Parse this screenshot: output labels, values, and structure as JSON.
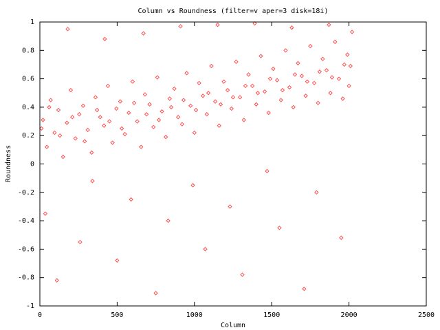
{
  "chart_data": {
    "type": "scatter",
    "title": "Column vs Roundness (filter=v aper=3 disk=18i)",
    "x_label": "Column",
    "y_label": "Roundness",
    "color": "#ff5050",
    "xlim": [
      0,
      2500
    ],
    "xticks": [
      0,
      500,
      1000,
      1500,
      2000,
      2500
    ],
    "ylim": [
      -1,
      1
    ],
    "yticks": [
      -1,
      -0.8,
      -0.6,
      -0.4,
      -0.2,
      0,
      0.2,
      0.4,
      0.6,
      0.8,
      1
    ],
    "x": [
      20,
      45,
      70,
      95,
      120,
      150,
      175,
      200,
      230,
      255,
      280,
      310,
      335,
      360,
      390,
      415,
      440,
      470,
      495,
      520,
      550,
      575,
      600,
      630,
      655,
      680,
      710,
      735,
      760,
      790,
      815,
      840,
      870,
      895,
      920,
      950,
      975,
      1000,
      1030,
      1055,
      1080,
      1110,
      1135,
      1160,
      1190,
      1215,
      1240,
      1270,
      1295,
      1320,
      1350,
      1375,
      1400,
      1430,
      1455,
      1480,
      1510,
      1535,
      1560,
      1590,
      1615,
      1640,
      1670,
      1695,
      1720,
      1750,
      1775,
      1800,
      1830,
      1855,
      1880,
      1910,
      1935,
      1960,
      1990,
      2010,
      35,
      110,
      180,
      260,
      340,
      420,
      500,
      590,
      670,
      750,
      830,
      910,
      990,
      1070,
      1150,
      1230,
      1310,
      1390,
      1470,
      1550,
      1630,
      1710,
      1790,
      1870,
      1950,
      2020,
      10,
      60,
      130,
      210,
      290,
      370,
      450,
      530,
      610,
      690,
      770,
      850,
      930,
      1010,
      1090,
      1170,
      1250,
      1330,
      1410,
      1490,
      1570,
      1650,
      1730,
      1810,
      1890,
      1970,
      2000
    ],
    "values": [
      0.31,
      0.12,
      0.45,
      0.22,
      0.38,
      0.05,
      0.29,
      0.52,
      0.18,
      0.35,
      0.41,
      0.24,
      0.08,
      0.47,
      0.33,
      0.27,
      0.55,
      0.15,
      0.39,
      0.44,
      0.21,
      0.36,
      0.58,
      0.3,
      0.12,
      0.49,
      0.42,
      0.26,
      0.61,
      0.37,
      0.19,
      0.46,
      0.53,
      0.33,
      0.28,
      0.64,
      0.41,
      0.22,
      0.57,
      0.48,
      0.35,
      0.69,
      0.44,
      0.27,
      0.58,
      0.52,
      0.39,
      0.72,
      0.47,
      0.31,
      0.63,
      0.55,
      0.42,
      0.76,
      0.51,
      0.36,
      0.67,
      0.59,
      0.45,
      0.8,
      0.54,
      0.4,
      0.71,
      0.62,
      0.48,
      0.83,
      0.57,
      0.43,
      0.74,
      0.66,
      0.5,
      0.86,
      0.6,
      0.46,
      0.77,
      0.69,
      -0.35,
      -0.82,
      0.95,
      -0.55,
      -0.12,
      0.88,
      -0.68,
      -0.25,
      0.92,
      -0.91,
      -0.4,
      0.97,
      -0.15,
      -0.6,
      0.98,
      -0.3,
      -0.78,
      0.99,
      -0.05,
      -0.45,
      0.96,
      -0.88,
      -0.2,
      0.98,
      -0.52,
      0.93,
      0.25,
      0.4,
      0.2,
      0.33,
      0.16,
      0.38,
      0.3,
      0.25,
      0.43,
      0.35,
      0.31,
      0.4,
      0.45,
      0.38,
      0.5,
      0.42,
      0.47,
      0.55,
      0.5,
      0.6,
      0.52,
      0.63,
      0.58,
      0.65,
      0.61,
      0.7,
      0.55
    ]
  }
}
